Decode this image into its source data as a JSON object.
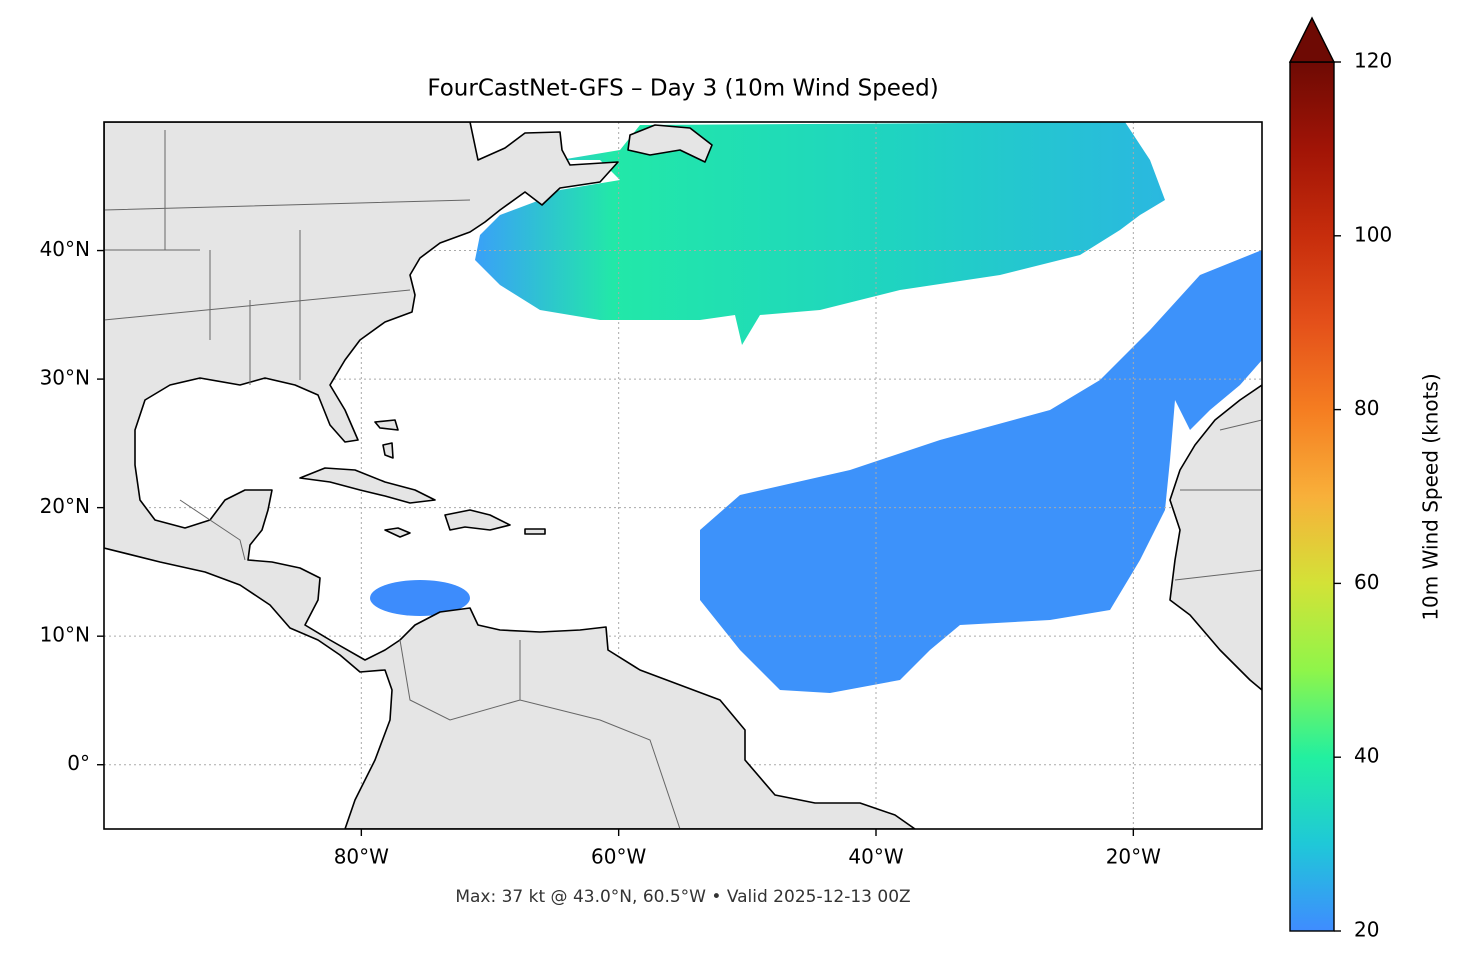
{
  "map": {
    "title": "FourCastNet-GFS – Day 3 (10m Wind Speed)",
    "note": "Max: 37 kt @ 43.0°N, 60.5°W • Valid 2025-12-13 00Z",
    "lon_range": [
      -100,
      -10
    ],
    "lat_range": [
      -5,
      50
    ],
    "lon_ticks": [
      {
        "value": -80,
        "label": "80°W"
      },
      {
        "value": -60,
        "label": "60°W"
      },
      {
        "value": -40,
        "label": "40°W"
      },
      {
        "value": -20,
        "label": "20°W"
      }
    ],
    "lat_ticks": [
      {
        "value": 0,
        "label": "0°"
      },
      {
        "value": 10,
        "label": "10°N"
      },
      {
        "value": 20,
        "label": "20°N"
      },
      {
        "value": 30,
        "label": "30°N"
      },
      {
        "value": 40,
        "label": "40°N"
      }
    ],
    "grid": true
  },
  "colorbar": {
    "label": "10m Wind Speed (knots)",
    "range": [
      20,
      120
    ],
    "ticks": [
      20,
      40,
      60,
      80,
      100,
      120
    ],
    "colors": [
      "#3f8cff",
      "#1fc8d8",
      "#22f0a0",
      "#8ff54a",
      "#d3e237",
      "#f8b03a",
      "#f57d21",
      "#e4501a",
      "#c72d0c",
      "#a11406",
      "#6e0a04"
    ],
    "extend": "max"
  }
}
